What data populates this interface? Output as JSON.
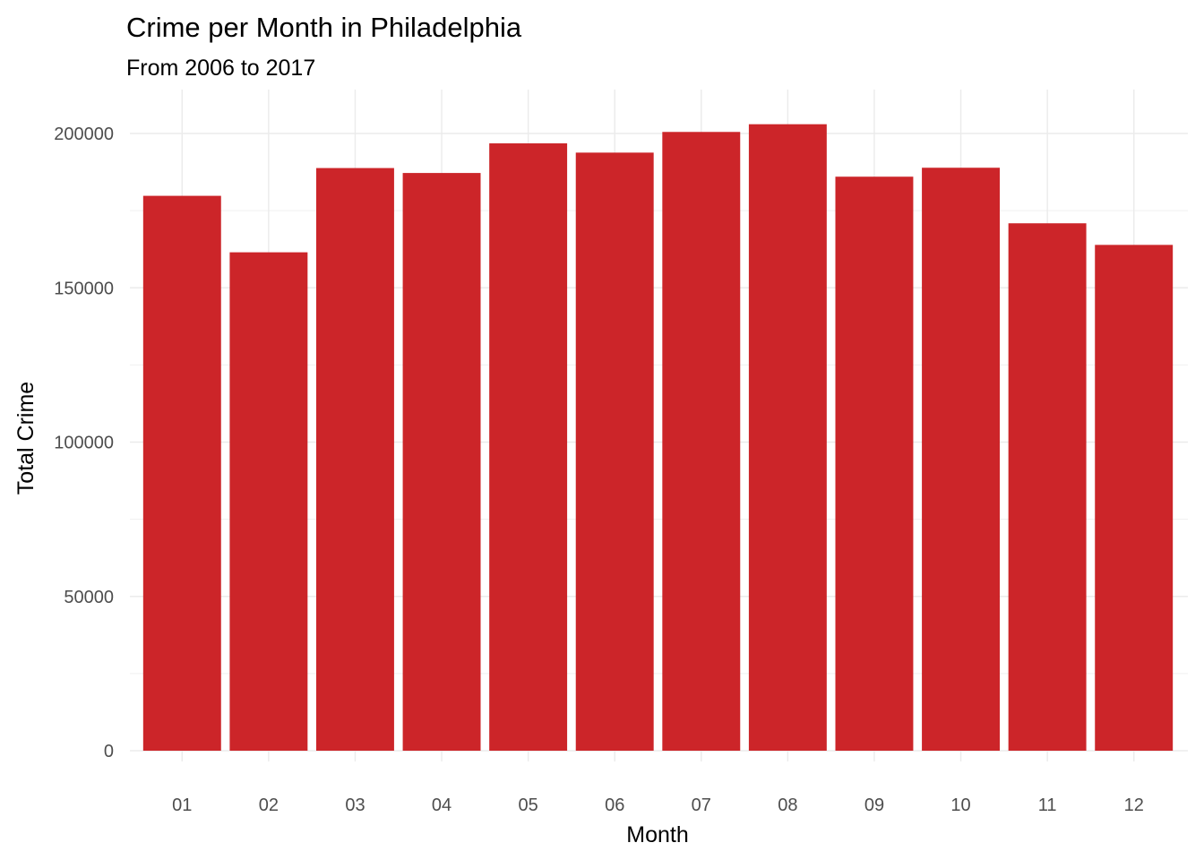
{
  "chart_data": {
    "type": "bar",
    "title": "Crime per Month in Philadelphia",
    "subtitle": "From 2006 to 2017",
    "xlabel": "Month",
    "ylabel": "Total Crime",
    "categories": [
      "01",
      "02",
      "03",
      "04",
      "05",
      "06",
      "07",
      "08",
      "09",
      "10",
      "11",
      "12"
    ],
    "values": [
      179800,
      161500,
      188800,
      187200,
      196800,
      193800,
      200500,
      203000,
      186000,
      188900,
      170900,
      163900
    ],
    "ylim": [
      0,
      210000
    ],
    "yticks": [
      0,
      50000,
      100000,
      150000,
      200000
    ],
    "ytick_labels": [
      "0",
      "50000",
      "100000",
      "150000",
      "200000"
    ],
    "bar_color": "#cc2529",
    "grid": true,
    "legend": "none"
  }
}
